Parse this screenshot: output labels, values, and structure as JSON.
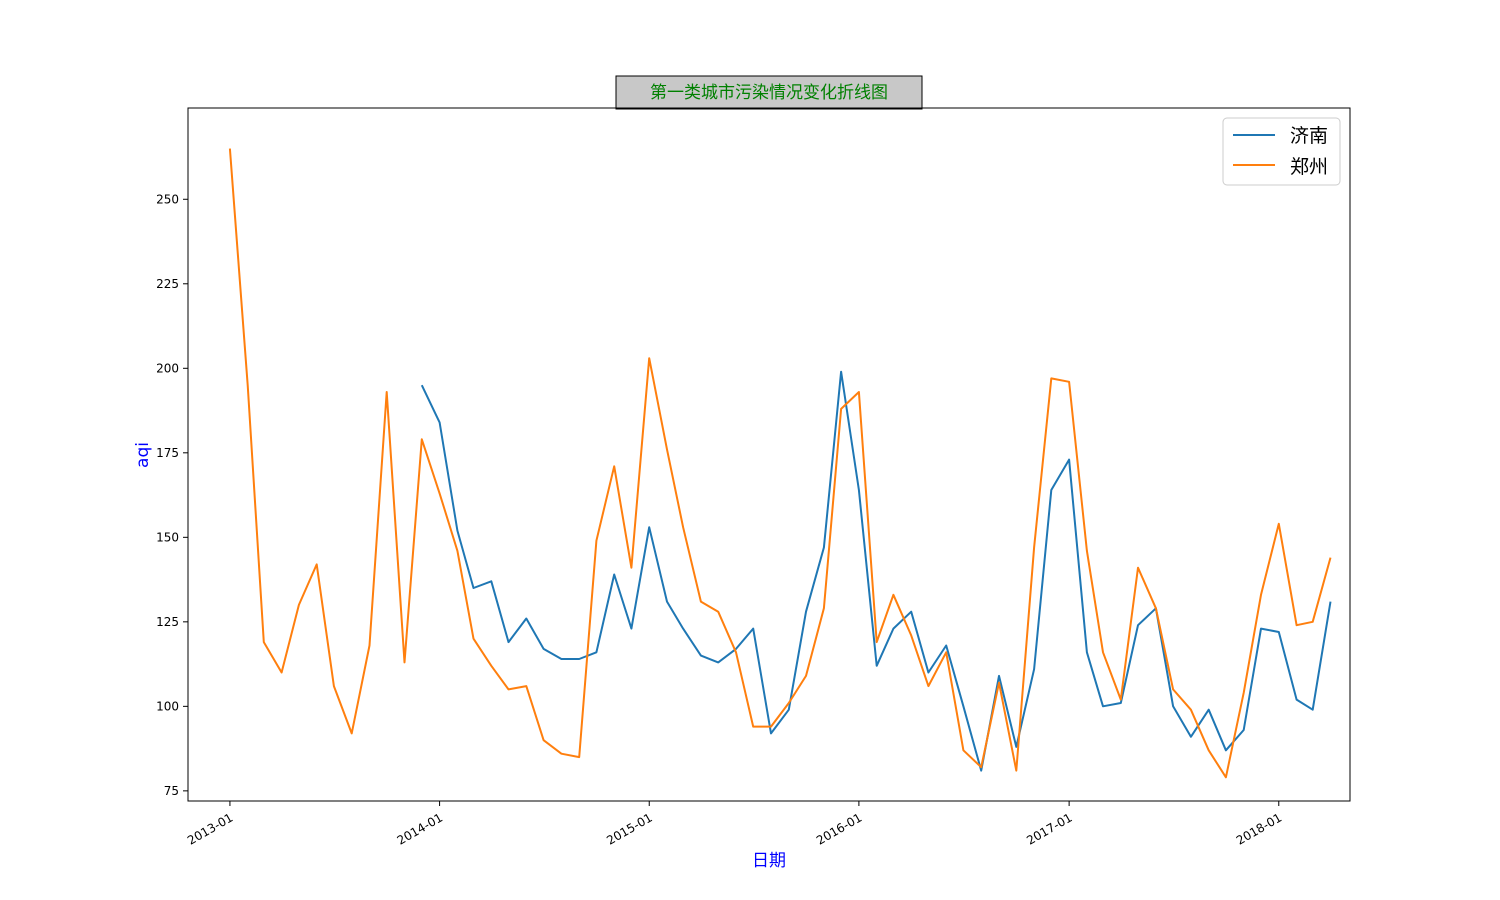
{
  "chart_data": {
    "type": "line",
    "title": "第一类城市污染情况变化折线图",
    "title_color": "#008000",
    "title_box_color": "#c8c8c8",
    "xlabel": "日期",
    "ylabel": "aqi",
    "label_color": "#0000ff",
    "ylim": [
      72,
      277
    ],
    "xlim": [
      "2012-10-20",
      "2018-05-05"
    ],
    "y_ticks": [
      75,
      100,
      125,
      150,
      175,
      200,
      225,
      250
    ],
    "x_ticks": [
      "2013-01",
      "2014-01",
      "2015-01",
      "2016-01",
      "2017-01",
      "2018-01"
    ],
    "grid": false,
    "legend_position": "upper right",
    "series": [
      {
        "name": "济南",
        "color": "#1f77b4",
        "x": [
          "2013-12",
          "2014-01",
          "2014-02",
          "2014-03",
          "2014-04",
          "2014-05",
          "2014-06",
          "2014-07",
          "2014-08",
          "2014-09",
          "2014-10",
          "2014-11",
          "2014-12",
          "2015-01",
          "2015-02",
          "2015-03",
          "2015-04",
          "2015-05",
          "2015-06",
          "2015-07",
          "2015-08",
          "2015-09",
          "2015-10",
          "2015-11",
          "2015-12",
          "2016-01",
          "2016-02",
          "2016-03",
          "2016-04",
          "2016-05",
          "2016-06",
          "2016-07",
          "2016-08",
          "2016-09",
          "2016-10",
          "2016-11",
          "2016-12",
          "2017-01",
          "2017-02",
          "2017-03",
          "2017-04",
          "2017-05",
          "2017-06",
          "2017-07",
          "2017-08",
          "2017-09",
          "2017-10",
          "2017-11",
          "2017-12",
          "2018-01",
          "2018-02",
          "2018-03",
          "2018-04"
        ],
        "values": [
          195,
          184,
          152,
          135,
          137,
          119,
          126,
          117,
          114,
          114,
          116,
          139,
          123,
          153,
          131,
          123,
          115,
          113,
          117,
          123,
          92,
          99,
          128,
          147,
          199,
          164,
          112,
          123,
          128,
          110,
          118,
          100,
          81,
          109,
          88,
          111,
          164,
          173,
          116,
          100,
          101,
          124,
          129,
          100,
          91,
          99,
          87,
          93,
          123,
          122,
          102,
          99,
          131
        ]
      },
      {
        "name": "郑州",
        "color": "#ff7f0e",
        "x": [
          "2013-01",
          "2013-02",
          "2013-03",
          "2013-04",
          "2013-05",
          "2013-06",
          "2013-07",
          "2013-08",
          "2013-09",
          "2013-10",
          "2013-11",
          "2013-12",
          "2014-01",
          "2014-02",
          "2014-03",
          "2014-04",
          "2014-05",
          "2014-06",
          "2014-07",
          "2014-08",
          "2014-09",
          "2014-10",
          "2014-11",
          "2014-12",
          "2015-01",
          "2015-02",
          "2015-03",
          "2015-04",
          "2015-05",
          "2015-06",
          "2015-07",
          "2015-08",
          "2015-09",
          "2015-10",
          "2015-11",
          "2015-12",
          "2016-01",
          "2016-02",
          "2016-03",
          "2016-04",
          "2016-05",
          "2016-06",
          "2016-07",
          "2016-08",
          "2016-09",
          "2016-10",
          "2016-11",
          "2016-12",
          "2017-01",
          "2017-02",
          "2017-03",
          "2017-04",
          "2017-05",
          "2017-06",
          "2017-07",
          "2017-08",
          "2017-09",
          "2017-10",
          "2017-11",
          "2017-12",
          "2018-01",
          "2018-02",
          "2018-03",
          "2018-04"
        ],
        "values": [
          265,
          195,
          119,
          110,
          130,
          142,
          106,
          92,
          118,
          193,
          113,
          179,
          163,
          146,
          120,
          112,
          105,
          106,
          90,
          86,
          85,
          149,
          171,
          141,
          203,
          176,
          153,
          131,
          128,
          116,
          94,
          94,
          101,
          109,
          129,
          188,
          193,
          119,
          133,
          121,
          106,
          116,
          87,
          82,
          107,
          81,
          147,
          197,
          196,
          146,
          116,
          102,
          141,
          129,
          105,
          99,
          87,
          79,
          104,
          133,
          154,
          124,
          125,
          144
        ]
      }
    ]
  }
}
